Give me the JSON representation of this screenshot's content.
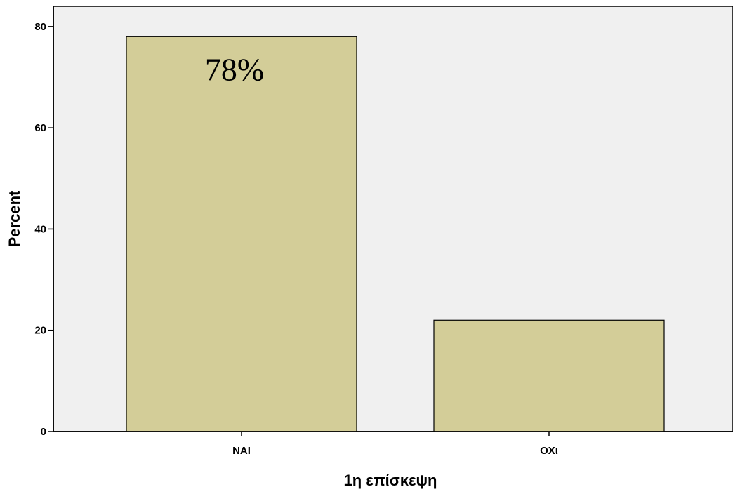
{
  "chart_data": {
    "type": "bar",
    "categories": [
      "NAI",
      "OXι"
    ],
    "values": [
      78,
      22
    ],
    "title": "",
    "xlabel": "1η επίσκεψη",
    "ylabel": "Percent",
    "ylim": [
      0,
      84
    ],
    "yticks": [
      0,
      20,
      40,
      60,
      80
    ],
    "ytick_labels": [
      "0",
      "20",
      "40",
      "60",
      "80"
    ],
    "data_labels": [
      "78%",
      ""
    ],
    "grid": false,
    "legend": "none",
    "colors": {
      "plot_background": "#f0f0f0",
      "bar_fill": "#d3cd98",
      "bar_stroke": "#000000",
      "axis": "#000000"
    }
  }
}
